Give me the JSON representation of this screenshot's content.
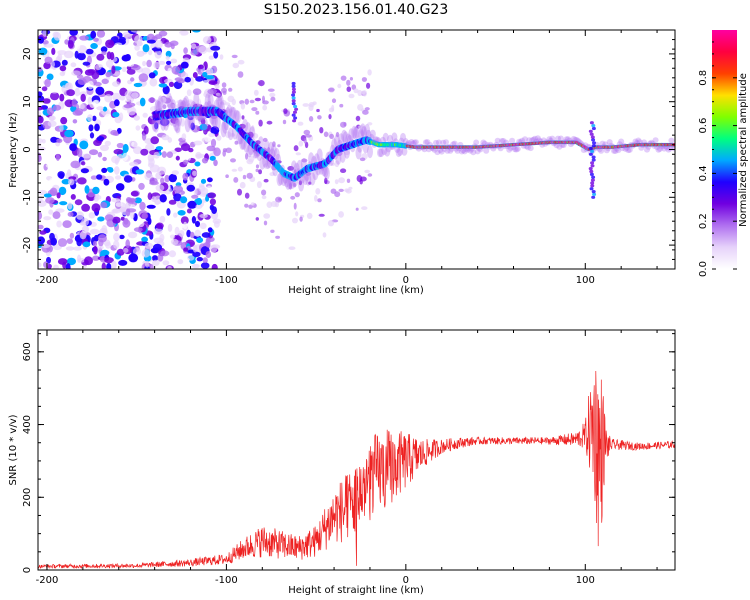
{
  "title": "S150.2023.156.01.40.G23",
  "colors": {
    "snr_line": "#ee2222",
    "axis": "#000000",
    "colormap": [
      "#ffffff",
      "#e6d2fa",
      "#b070f0",
      "#7000e0",
      "#2000ff",
      "#00aaff",
      "#00ff80",
      "#80ff00",
      "#ffe000",
      "#ff4000",
      "#ff0040",
      "#ff00a0"
    ]
  },
  "chart_data": [
    {
      "type": "heatmap",
      "xlabel": "Height of straight line (km)",
      "ylabel": "Frequency (Hz)",
      "xlim": [
        -205,
        150
      ],
      "ylim": [
        -25,
        25
      ],
      "xticks": [
        -200,
        -100,
        0,
        100
      ],
      "xtick_labels": [
        "-200",
        "-100",
        "0",
        "100"
      ],
      "yticks": [
        -20,
        -10,
        0,
        10,
        20
      ],
      "ytick_labels": [
        "-20",
        "-10",
        "0",
        "10",
        "20"
      ],
      "colorbar": {
        "label": "Normalized spectral amplitude",
        "range": [
          0,
          1
        ],
        "ticks": [
          0.0,
          0.2,
          0.4,
          0.6,
          0.8
        ],
        "tick_labels": [
          "0.0",
          "0.2",
          "0.4",
          "0.6",
          "0.8"
        ]
      },
      "ridge": {
        "x": [
          -205,
          -180,
          -160,
          -140,
          -120,
          -105,
          -95,
          -85,
          -75,
          -68,
          -62,
          -55,
          -45,
          -38,
          -30,
          -22,
          -15,
          -5,
          5,
          20,
          40,
          60,
          80,
          95,
          102,
          106,
          115,
          130,
          150
        ],
        "y": [
          6,
          6,
          7,
          7,
          8,
          8,
          5,
          1,
          -2,
          -5,
          -6,
          -4,
          -3,
          0,
          1,
          2,
          1,
          1,
          0.5,
          0.5,
          0.5,
          1,
          1.5,
          1.5,
          0,
          0.5,
          0.5,
          1,
          1
        ]
      }
    },
    {
      "type": "line",
      "xlabel": "Height of straight line (km)",
      "ylabel": "SNR (10 * v/v)",
      "xlim": [
        -205,
        150
      ],
      "ylim": [
        0,
        660
      ],
      "xticks": [
        -200,
        -100,
        0,
        100
      ],
      "xtick_labels": [
        "-200",
        "-100",
        "0",
        "100"
      ],
      "yticks": [
        0,
        200,
        400,
        600
      ],
      "ytick_labels": [
        "0",
        "200",
        "400",
        "600"
      ],
      "series": [
        {
          "envelope_x": [
            -205,
            -150,
            -120,
            -100,
            -90,
            -80,
            -70,
            -60,
            -50,
            -40,
            -30,
            -20,
            -10,
            0,
            10,
            20,
            30,
            40,
            60,
            80,
            95,
            100,
            105,
            108,
            110,
            112,
            115,
            130,
            150
          ],
          "envelope_y": [
            10,
            12,
            20,
            30,
            60,
            80,
            70,
            60,
            80,
            150,
            180,
            260,
            280,
            300,
            320,
            340,
            350,
            355,
            355,
            355,
            360,
            370,
            400,
            300,
            350,
            340,
            345,
            340,
            345
          ],
          "spread": [
            5,
            6,
            10,
            15,
            30,
            45,
            40,
            35,
            45,
            80,
            100,
            110,
            110,
            80,
            40,
            20,
            15,
            10,
            10,
            10,
            20,
            40,
            200,
            300,
            150,
            40,
            15,
            10,
            10
          ]
        }
      ]
    }
  ]
}
